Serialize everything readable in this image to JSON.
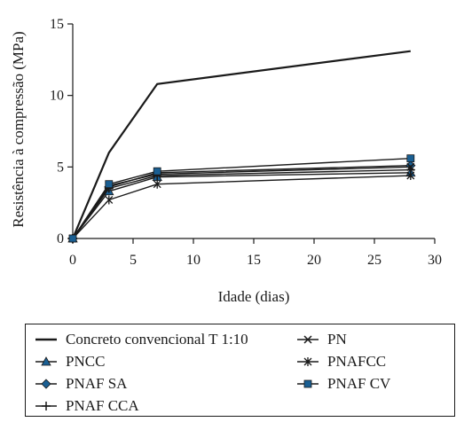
{
  "chart_data": {
    "type": "line",
    "xlabel": "Idade (dias)",
    "ylabel": "Resistência à compressão (MPa)",
    "xlim": [
      0,
      30
    ],
    "ylim": [
      0,
      15
    ],
    "xticks": [
      0,
      5,
      10,
      15,
      20,
      25,
      30
    ],
    "yticks": [
      0,
      5,
      10,
      15
    ],
    "grid": false,
    "legend_position": "bottom",
    "series": [
      {
        "name": "Concreto convencional T 1:10",
        "marker": "none",
        "x": [
          0,
          3,
          7,
          28
        ],
        "y": [
          0,
          6.0,
          10.8,
          13.1
        ]
      },
      {
        "name": "PNCC",
        "marker": "triangle",
        "x": [
          0,
          3,
          7,
          28
        ],
        "y": [
          0,
          3.3,
          4.3,
          4.6
        ]
      },
      {
        "name": "PNAF SA",
        "marker": "diamond",
        "x": [
          0,
          3,
          7,
          28
        ],
        "y": [
          0,
          3.6,
          4.6,
          5.1
        ]
      },
      {
        "name": "PNAF CCA",
        "marker": "plus",
        "x": [
          0,
          3,
          7,
          28
        ],
        "y": [
          0,
          3.5,
          4.4,
          4.8
        ]
      },
      {
        "name": "PN",
        "marker": "x",
        "x": [
          0,
          3,
          7,
          28
        ],
        "y": [
          0,
          3.7,
          4.5,
          5.0
        ]
      },
      {
        "name": "PNAFCC",
        "marker": "star",
        "x": [
          0,
          3,
          7,
          28
        ],
        "y": [
          0,
          2.7,
          3.8,
          4.4
        ]
      },
      {
        "name": "PNAF CV",
        "marker": "square",
        "x": [
          0,
          3,
          7,
          28
        ],
        "y": [
          0,
          3.8,
          4.7,
          5.6
        ]
      }
    ]
  }
}
